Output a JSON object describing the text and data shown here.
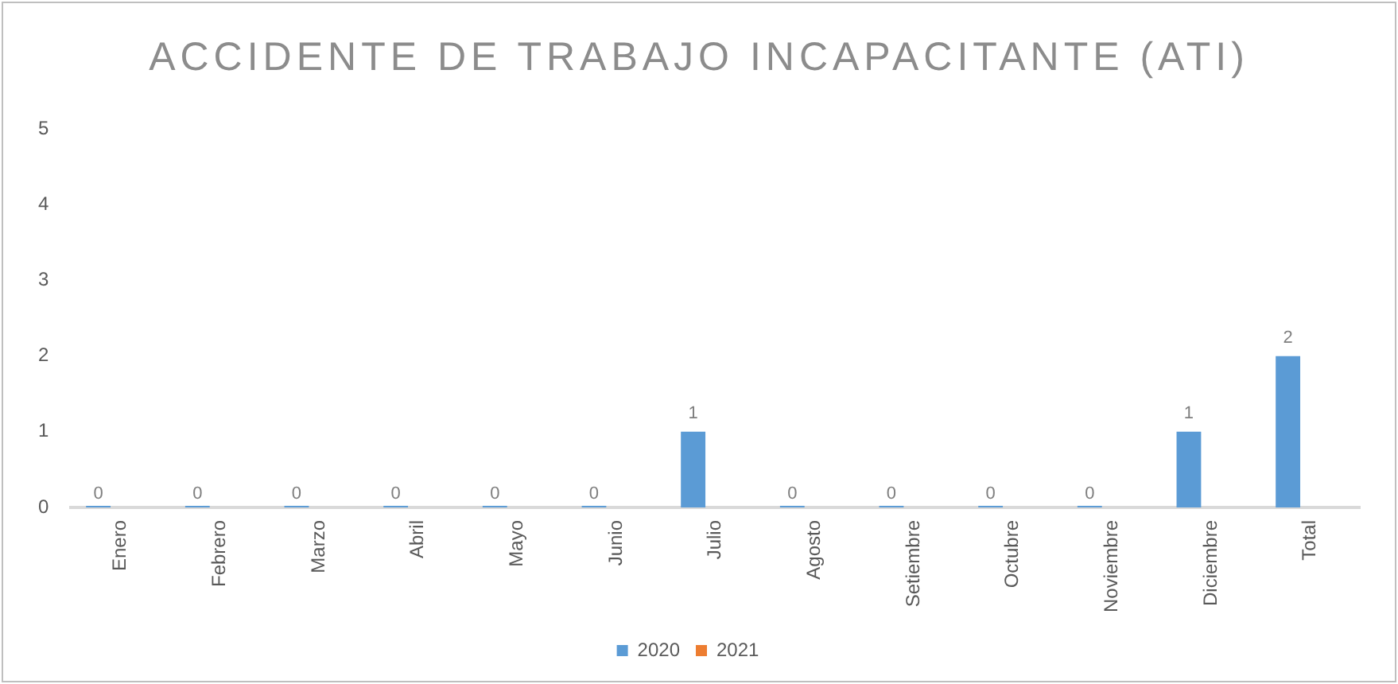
{
  "chart_data": {
    "type": "bar",
    "title": "ACCIDENTE DE TRABAJO INCAPACITANTE (ATI)",
    "categories": [
      "Enero",
      "Febrero",
      "Marzo",
      "Abril",
      "Mayo",
      "Junio",
      "Julio",
      "Agosto",
      "Setiembre",
      "Octubre",
      "Noviembre",
      "Diciembre",
      "Total"
    ],
    "series": [
      {
        "name": "2020",
        "color": "#5b9bd5",
        "values": [
          0,
          0,
          0,
          0,
          0,
          0,
          1,
          0,
          0,
          0,
          0,
          1,
          2
        ]
      },
      {
        "name": "2021",
        "color": "#ed7d31",
        "values": [
          null,
          null,
          null,
          null,
          null,
          null,
          null,
          null,
          null,
          null,
          null,
          null,
          null
        ]
      }
    ],
    "ylim": [
      0,
      5
    ],
    "yticks": [
      0,
      1,
      2,
      3,
      4,
      5
    ],
    "grid": false,
    "legend": "bottom",
    "data_labels": true
  }
}
